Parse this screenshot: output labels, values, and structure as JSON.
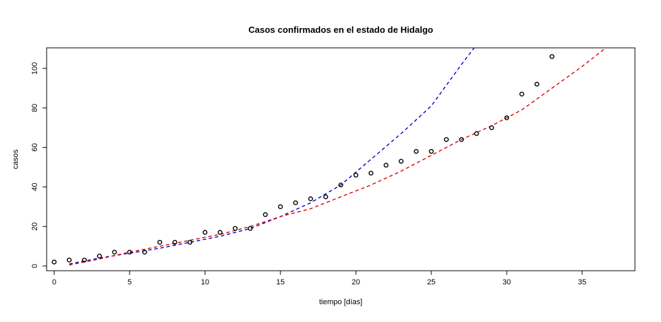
{
  "chart_data": {
    "type": "scatter",
    "title": "Casos confirmados en el estado de Hidalgo",
    "x_label": "tiempo [días]",
    "y_label": "casos",
    "xlim": [
      -0.5,
      38.5
    ],
    "ylim": [
      -2.4,
      110.4
    ],
    "xticks": [
      0,
      5,
      10,
      15,
      20,
      25,
      30,
      35
    ],
    "yticks": [
      0,
      20,
      40,
      60,
      80,
      100
    ],
    "series": [
      {
        "style": "points",
        "color": "#000000",
        "x": [
          0,
          1,
          2,
          3,
          4,
          5,
          6,
          7,
          8,
          9,
          10,
          11,
          12,
          13,
          14,
          15,
          16,
          17,
          18,
          19,
          20,
          21,
          22,
          23,
          24,
          25,
          26,
          27,
          28,
          29,
          30,
          31,
          32,
          33
        ],
        "values": [
          2,
          3,
          3,
          5,
          7,
          7,
          7,
          12,
          12,
          12,
          17,
          17,
          19,
          19,
          26,
          30,
          32,
          34,
          35,
          41,
          46,
          47,
          51,
          53,
          58,
          58,
          64,
          64,
          67,
          70,
          75,
          87,
          92,
          106
        ]
      },
      {
        "style": "dashed-line",
        "color": "#0000cc",
        "x": [
          1,
          3,
          5,
          7,
          9,
          11,
          13,
          15,
          17,
          19,
          21,
          23,
          25,
          27,
          28
        ],
        "values": [
          1,
          4,
          6.5,
          9,
          12,
          15,
          19,
          25,
          32,
          41,
          54,
          67,
          81,
          102,
          112
        ]
      },
      {
        "style": "dashed-line",
        "color": "#dd0000",
        "x": [
          1,
          3,
          5,
          7,
          9,
          11,
          13,
          15,
          17,
          19,
          21,
          23,
          25,
          27,
          29,
          31,
          33,
          35,
          37
        ],
        "values": [
          0.5,
          3.5,
          7,
          10,
          13,
          16,
          20,
          25,
          29,
          35,
          41,
          48,
          56,
          64,
          71,
          79,
          90,
          101,
          113
        ]
      }
    ]
  }
}
